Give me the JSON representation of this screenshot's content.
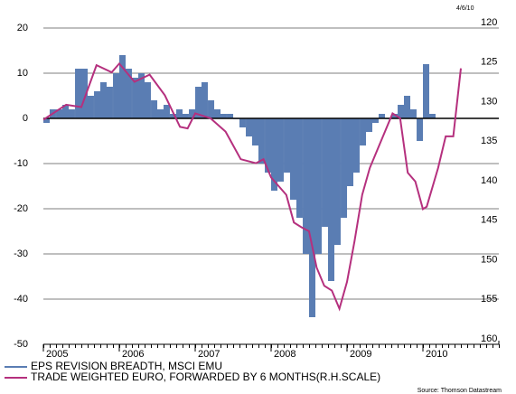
{
  "chart_data": {
    "type": "bar_line",
    "date": "4/6/10",
    "source": "Source: Thomson Datastream",
    "xlim": [
      2005,
      2011
    ],
    "xticks": [
      2005,
      2006,
      2007,
      2008,
      2009,
      2010
    ],
    "ylim": [
      -50,
      20
    ],
    "yticks": [
      -50,
      -40,
      -30,
      -20,
      -10,
      0,
      10,
      20
    ],
    "y2lim": [
      160,
      120
    ],
    "y2ticks": [
      160,
      155,
      150,
      145,
      140,
      135,
      130,
      125,
      120
    ],
    "grid": true,
    "series": [
      {
        "name": "EPS REVISION BREADTH, MSCI EMU",
        "color": "#5a7db3",
        "type": "bar",
        "x": [
          2005.0,
          2005.083,
          2005.167,
          2005.25,
          2005.333,
          2005.417,
          2005.5,
          2005.583,
          2005.667,
          2005.75,
          2005.833,
          2005.917,
          2006.0,
          2006.083,
          2006.167,
          2006.25,
          2006.333,
          2006.417,
          2006.5,
          2006.583,
          2006.667,
          2006.75,
          2006.833,
          2006.917,
          2007.0,
          2007.083,
          2007.167,
          2007.25,
          2007.333,
          2007.417,
          2007.5,
          2007.583,
          2007.667,
          2007.75,
          2007.833,
          2007.917,
          2008.0,
          2008.083,
          2008.167,
          2008.25,
          2008.333,
          2008.417,
          2008.5,
          2008.583,
          2008.667,
          2008.75,
          2008.833,
          2008.917,
          2009.0,
          2009.083,
          2009.167,
          2009.25,
          2009.333,
          2009.417,
          2009.5,
          2009.583,
          2009.667,
          2009.75,
          2009.833,
          2009.917,
          2010.0,
          2010.083
        ],
        "values": [
          -1,
          2,
          2,
          3,
          2,
          11,
          11,
          5,
          6,
          8,
          7,
          10,
          14,
          11,
          9,
          10,
          8,
          4,
          2,
          3,
          1,
          2,
          1,
          2,
          7,
          8,
          4,
          2,
          1,
          1,
          0,
          -2,
          -4,
          -6,
          -10,
          -12,
          -16,
          -14,
          -12,
          -18,
          -22,
          -30,
          -44,
          -30,
          -24,
          -36,
          -28,
          -22,
          -15,
          -12,
          -6,
          -3,
          -1,
          1,
          0,
          1,
          3,
          5,
          2,
          -5,
          12,
          1
        ]
      },
      {
        "name": "TRADE WEIGHTED EURO, FORWARDED BY 6 MONTHS(R.H.SCALE)",
        "color": "#b5307e",
        "type": "line",
        "axis": "y2",
        "x": [
          2005.0,
          2005.3,
          2005.5,
          2005.7,
          2005.9,
          2006.0,
          2006.2,
          2006.4,
          2006.6,
          2006.8,
          2006.9,
          2007.0,
          2007.2,
          2007.4,
          2007.6,
          2007.8,
          2007.9,
          2008.0,
          2008.2,
          2008.3,
          2008.4,
          2008.5,
          2008.6,
          2008.7,
          2008.8,
          2008.9,
          2009.0,
          2009.1,
          2009.2,
          2009.3,
          2009.4,
          2009.5,
          2009.6,
          2009.7,
          2009.8,
          2009.9,
          2010.0,
          2010.05,
          2010.2,
          2010.3,
          2010.4,
          2010.5
        ],
        "values": [
          131.6,
          129.7,
          130.0,
          124.7,
          125.6,
          124.5,
          126.8,
          125.9,
          128.5,
          132.5,
          132.7,
          130.8,
          131.4,
          133.1,
          136.6,
          137.1,
          136.6,
          138.9,
          141.1,
          144.6,
          145.2,
          145.7,
          150.3,
          152.6,
          153.2,
          155.5,
          152.1,
          146.9,
          141.1,
          137.7,
          135.4,
          133.1,
          130.8,
          131.4,
          138.3,
          139.4,
          142.9,
          142.6,
          137.7,
          133.7,
          133.7,
          125.1
        ]
      }
    ]
  }
}
